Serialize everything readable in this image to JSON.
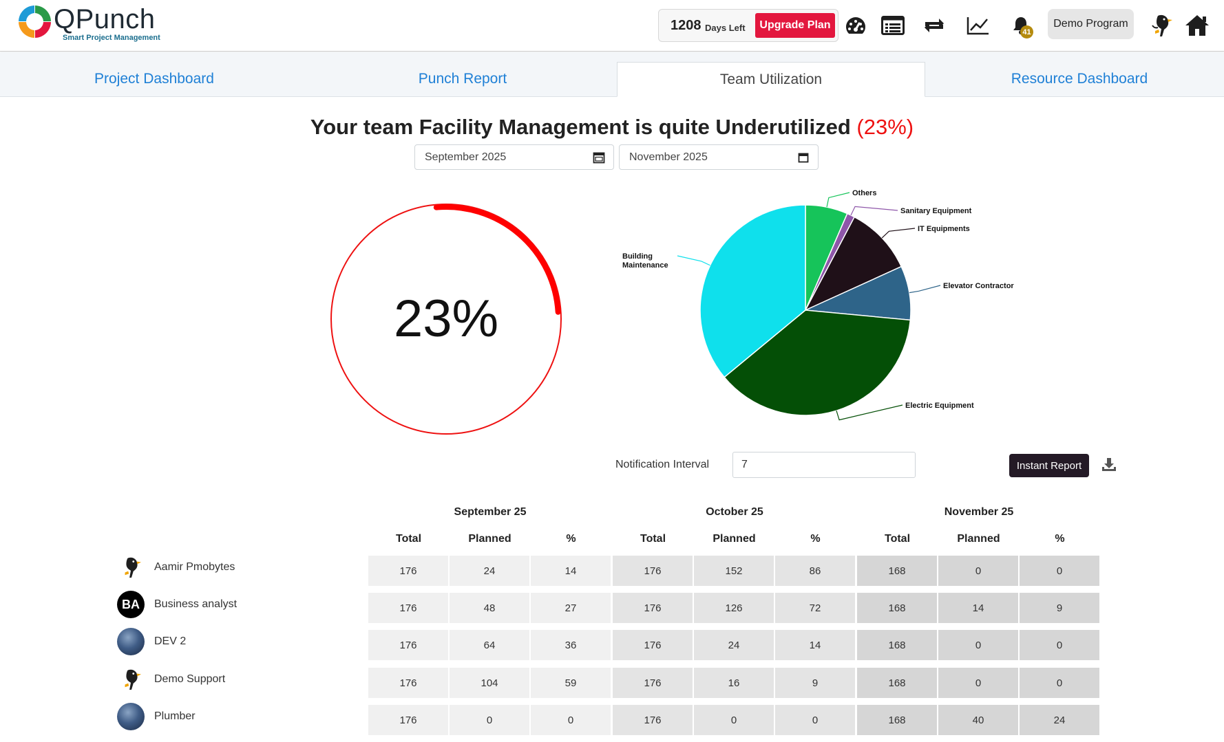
{
  "brand": {
    "name": "QPunch",
    "tagline": "Smart Project Management"
  },
  "header": {
    "days_left": "1208",
    "days_left_label": "Days Left",
    "upgrade_label": "Upgrade Plan",
    "notification_count": "41",
    "program_label": "Demo Program",
    "icons": [
      "dashboard-gauge-icon",
      "list-icon",
      "sync-icon",
      "trend-chart-icon",
      "bell-icon",
      "user-avatar-icon",
      "home-icon"
    ]
  },
  "tabs": [
    {
      "label": "Project Dashboard",
      "active": false
    },
    {
      "label": "Punch Report",
      "active": false
    },
    {
      "label": "Team Utilization",
      "active": true
    },
    {
      "label": "Resource Dashboard",
      "active": false
    }
  ],
  "headline": {
    "text": "Your team Facility Management is quite Underutilized",
    "percent": "(23%)"
  },
  "date_range": {
    "from": "September  2025",
    "to": "November  2025"
  },
  "gauge": {
    "label": "23%",
    "value": 0.23,
    "color": "#ff0000"
  },
  "pie": {
    "slices": [
      {
        "label": "Others",
        "value": 6.5,
        "color": "#16c45a"
      },
      {
        "label": "Sanitary Equipment",
        "value": 1.2,
        "color": "#8e56a9"
      },
      {
        "label": "IT Equipments",
        "value": 10.5,
        "color": "#1f1018"
      },
      {
        "label": "Elevator Contractor",
        "value": 8.3,
        "color": "#2e6489"
      },
      {
        "label": "Electric Equipment",
        "value": 37.5,
        "color": "#044f06"
      },
      {
        "label": "Building Maintenance",
        "value": 36.0,
        "color": "#0fe0ec"
      }
    ]
  },
  "notification": {
    "label": "Notification Interval",
    "value": "7",
    "report_label": "Instant Report"
  },
  "table": {
    "months": [
      "September 25",
      "October 25",
      "November 25"
    ],
    "columns": [
      "Total",
      "Planned",
      "%"
    ],
    "rows": [
      {
        "name": "Aamir Pmobytes",
        "avatar": "penguin-icon",
        "values": [
          "176",
          "24",
          "14",
          "176",
          "152",
          "86",
          "168",
          "0",
          "0"
        ]
      },
      {
        "name": "Business analyst",
        "avatar": "BA",
        "values": [
          "176",
          "48",
          "27",
          "176",
          "126",
          "72",
          "168",
          "14",
          "9"
        ]
      },
      {
        "name": "DEV 2",
        "avatar": "photo-avatar",
        "values": [
          "176",
          "64",
          "36",
          "176",
          "24",
          "14",
          "168",
          "0",
          "0"
        ]
      },
      {
        "name": "Demo Support",
        "avatar": "penguin-icon",
        "values": [
          "176",
          "104",
          "59",
          "176",
          "16",
          "9",
          "168",
          "0",
          "0"
        ]
      },
      {
        "name": "Plumber",
        "avatar": "photo-avatar",
        "values": [
          "176",
          "0",
          "0",
          "176",
          "0",
          "0",
          "168",
          "40",
          "24"
        ]
      }
    ]
  }
}
